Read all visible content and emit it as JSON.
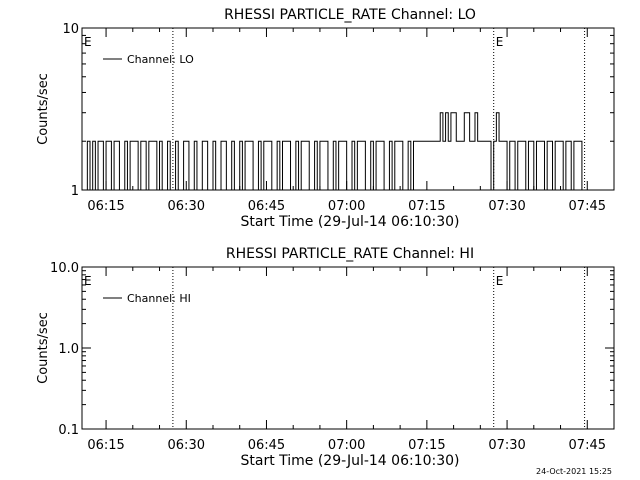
{
  "footer_timestamp": "24-Oct-2021 15:25",
  "chart_data": [
    {
      "type": "line",
      "title": "RHESSI PARTICLE_RATE Channel: LO",
      "xlabel": "Start Time (29-Jul-14 06:10:30)",
      "ylabel": "Counts/sec",
      "y_scale": "log",
      "ylim": [
        1,
        10
      ],
      "xlim": [
        "06:10:30",
        "07:50:00"
      ],
      "x_ticks": [
        "06:15",
        "06:30",
        "06:45",
        "07:00",
        "07:15",
        "07:30",
        "07:45"
      ],
      "y_ticks": [
        "1",
        "10"
      ],
      "legend": {
        "position": "top-left",
        "entries": [
          "Channel: LO"
        ]
      },
      "markers": [
        {
          "label": "E",
          "x": "06:10:30",
          "line": false
        },
        {
          "label": "",
          "x": "06:27:30",
          "line": true
        },
        {
          "label": "E",
          "x": "07:27:30",
          "line": true
        },
        {
          "label": "",
          "x": "07:44:30",
          "line": true
        }
      ],
      "series": [
        {
          "name": "Channel: LO",
          "x": [
            "06:11:00",
            "06:11:30",
            "06:12:00",
            "06:12:30",
            "06:13:00",
            "06:13:30",
            "06:14:00",
            "06:14:30",
            "06:15:00",
            "06:16:00",
            "06:16:30",
            "06:17:00",
            "06:17:30",
            "06:18:30",
            "06:19:00",
            "06:19:30",
            "06:20:00",
            "06:21:00",
            "06:21:30",
            "06:22:30",
            "06:23:00",
            "06:23:30",
            "06:24:30",
            "06:25:00",
            "06:25:30",
            "06:26:30",
            "06:27:00",
            "06:28:00",
            "06:28:30",
            "06:29:30",
            "06:30:00",
            "06:30:30",
            "06:31:30",
            "06:32:00",
            "06:33:00",
            "06:33:30",
            "06:34:00",
            "06:35:00",
            "06:35:30",
            "06:36:30",
            "06:37:00",
            "06:37:30",
            "06:38:30",
            "06:39:00",
            "06:40:00",
            "06:40:30",
            "06:41:00",
            "06:42:00",
            "06:42:30",
            "06:43:30",
            "06:44:00",
            "06:44:30",
            "06:45:30",
            "06:46:00",
            "06:47:00",
            "06:47:30",
            "06:48:00",
            "06:49:00",
            "06:49:30",
            "06:50:30",
            "06:51:00",
            "06:51:30",
            "06:52:30",
            "06:53:00",
            "06:54:00",
            "06:54:30",
            "06:55:00",
            "06:56:00",
            "06:56:30",
            "06:57:30",
            "06:58:00",
            "06:58:30",
            "06:59:30",
            "07:00:00",
            "07:01:00",
            "07:01:30",
            "07:02:00",
            "07:03:00",
            "07:03:30",
            "07:04:30",
            "07:05:00",
            "07:05:30",
            "07:06:30",
            "07:07:00",
            "07:08:00",
            "07:08:30",
            "07:09:00",
            "07:10:00",
            "07:10:30",
            "07:11:30",
            "07:12:00",
            "07:12:30",
            "07:13:30",
            "07:14:00",
            "07:15:00",
            "07:16:00",
            "07:17:00",
            "07:17:30",
            "07:18:00",
            "07:18:30",
            "07:19:00",
            "07:19:30",
            "07:20:00",
            "07:20:30",
            "07:21:00",
            "07:21:30",
            "07:22:00",
            "07:23:00",
            "07:23:30",
            "07:24:00",
            "07:24:30",
            "07:25:30",
            "07:26:00",
            "07:27:00",
            "07:27:30",
            "07:28:00",
            "07:28:30",
            "07:29:00",
            "07:30:00",
            "07:30:30",
            "07:31:30",
            "07:32:00",
            "07:32:30",
            "07:33:30",
            "07:34:00",
            "07:35:00",
            "07:35:30",
            "07:36:00",
            "07:37:00",
            "07:37:30",
            "07:38:30",
            "07:39:00",
            "07:39:30",
            "07:40:30",
            "07:41:00",
            "07:42:00",
            "07:42:30",
            "07:43:00",
            "07:44:00",
            "07:44:30"
          ],
          "values": [
            1,
            2,
            1,
            2,
            1,
            2,
            2,
            1,
            2,
            1,
            2,
            2,
            1,
            2,
            1,
            2,
            2,
            1,
            2,
            1,
            2,
            2,
            1,
            2,
            1,
            2,
            1,
            2,
            1,
            2,
            2,
            1,
            2,
            1,
            2,
            2,
            1,
            2,
            1,
            2,
            2,
            1,
            2,
            1,
            2,
            1,
            2,
            2,
            1,
            2,
            1,
            2,
            2,
            1,
            2,
            1,
            2,
            2,
            1,
            2,
            1,
            2,
            2,
            1,
            2,
            1,
            2,
            2,
            1,
            2,
            1,
            2,
            2,
            1,
            2,
            1,
            2,
            2,
            1,
            2,
            1,
            2,
            2,
            1,
            2,
            1,
            2,
            2,
            1,
            2,
            1,
            2,
            2,
            2,
            2,
            2,
            2,
            3,
            2,
            3,
            2,
            3,
            3,
            2,
            2,
            2,
            3,
            2,
            2,
            3,
            2,
            2,
            2,
            1,
            2,
            3,
            2,
            2,
            1,
            2,
            1,
            2,
            2,
            1,
            2,
            1,
            2,
            2,
            1,
            2,
            1,
            2,
            2,
            1,
            2,
            1,
            2,
            2,
            1,
            1
          ]
        }
      ]
    },
    {
      "type": "line",
      "title": "RHESSI PARTICLE_RATE Channel: HI",
      "xlabel": "Start Time (29-Jul-14 06:10:30)",
      "ylabel": "Counts/sec",
      "y_scale": "log",
      "ylim": [
        0.1,
        10.0
      ],
      "xlim": [
        "06:10:30",
        "07:50:00"
      ],
      "x_ticks": [
        "06:15",
        "06:30",
        "06:45",
        "07:00",
        "07:15",
        "07:30",
        "07:45"
      ],
      "y_ticks": [
        "0.1",
        "1.0",
        "10.0"
      ],
      "legend": {
        "position": "top-left",
        "entries": [
          "Channel: HI"
        ]
      },
      "markers": [
        {
          "label": "E",
          "x": "06:10:30",
          "line": false
        },
        {
          "label": "",
          "x": "06:27:30",
          "line": true
        },
        {
          "label": "E",
          "x": "07:27:30",
          "line": true
        },
        {
          "label": "",
          "x": "07:44:30",
          "line": true
        }
      ],
      "series": [
        {
          "name": "Channel: HI",
          "x": [],
          "values": []
        }
      ]
    }
  ]
}
